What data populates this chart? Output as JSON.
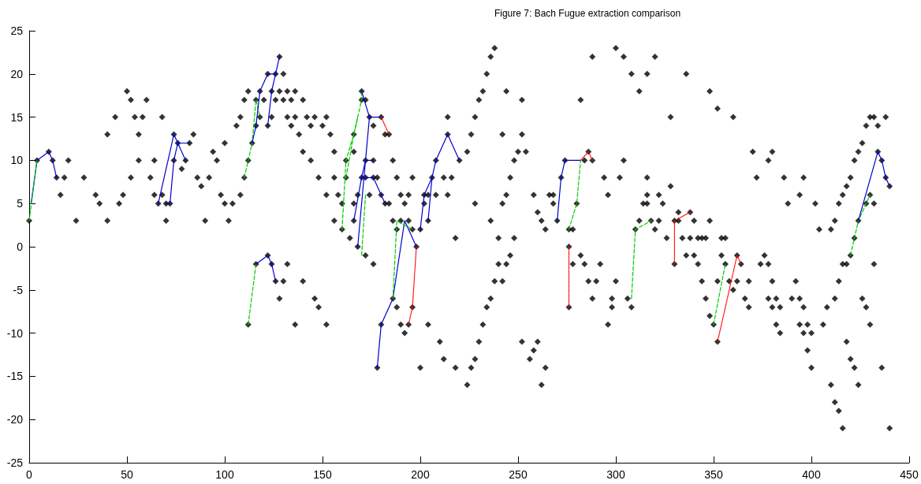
{
  "chart_data": {
    "type": "scatter",
    "title": "Figure 7: Bach Fugue extraction comparison",
    "xlim": [
      0,
      450
    ],
    "xticks": [
      0,
      50,
      100,
      150,
      200,
      250,
      300,
      350,
      400,
      450
    ],
    "ylim": [
      -25,
      25
    ],
    "yticks": [
      -25,
      -20,
      -15,
      -10,
      -5,
      0,
      5,
      10,
      15,
      20,
      25
    ],
    "grid": false,
    "series": [
      {
        "marker": "diamond",
        "color": "#000000",
        "x": [
          0,
          4,
          10,
          12,
          14,
          16,
          18,
          20,
          24,
          28,
          34,
          36,
          40,
          40,
          44,
          46,
          48,
          50,
          52,
          52,
          54,
          56,
          56,
          58,
          60,
          62,
          64,
          64,
          66,
          68,
          68,
          70,
          70,
          72,
          74,
          74,
          76,
          78,
          80,
          82,
          84,
          86,
          88,
          90,
          92,
          94,
          96,
          98,
          100,
          100,
          102,
          104,
          106,
          108,
          108,
          110,
          110,
          112,
          112,
          114,
          116,
          116,
          118,
          118,
          120,
          122,
          124,
          124,
          126,
          122,
          126,
          128,
          130,
          128,
          130,
          132,
          132,
          134,
          134,
          136,
          136,
          138,
          140,
          140,
          142,
          144,
          146,
          150,
          152,
          154,
          144,
          148,
          152,
          156,
          156,
          156,
          158,
          160,
          160,
          162,
          162,
          164,
          166,
          166,
          166,
          166,
          168,
          168,
          170,
          170,
          170,
          172,
          172,
          172,
          174,
          174,
          176,
          176,
          176,
          178,
          180,
          180,
          182,
          182,
          184,
          184,
          186,
          186,
          188,
          188,
          190,
          190,
          192,
          194,
          194,
          196,
          196,
          198,
          200,
          202,
          202,
          204,
          204,
          206,
          208,
          208,
          212,
          214,
          214,
          214,
          216,
          218,
          220,
          224,
          226,
          228,
          228,
          230,
          232,
          234,
          236,
          238,
          236,
          240,
          242,
          242,
          244,
          244,
          246,
          248,
          248,
          250,
          252,
          252,
          254,
          258,
          260,
          262,
          264,
          266,
          268,
          268,
          270,
          272,
          274,
          276,
          276,
          278,
          280,
          282,
          284,
          286,
          288,
          288,
          294,
          296,
          300,
          302,
          304,
          304,
          308,
          312,
          314,
          316,
          316,
          316,
          316,
          320,
          312,
          310,
          318,
          320,
          322,
          322,
          324,
          326,
          328,
          328,
          332,
          330,
          332,
          334,
          336,
          338,
          338,
          340,
          342,
          344,
          346,
          348,
          348,
          352,
          354,
          356,
          360,
          370,
          372,
          378,
          380,
          386,
          388,
          394,
          396,
          402,
          404,
          410,
          412,
          414,
          416,
          418,
          420,
          422,
          422,
          424,
          426,
          428,
          430,
          432,
          434,
          438,
          424,
          428,
          430,
          432,
          434,
          436,
          438,
          440
        ],
        "values": [
          3,
          10,
          11,
          10,
          8,
          6,
          8,
          10,
          3,
          8,
          6,
          5,
          3,
          13,
          15,
          5,
          6,
          18,
          17,
          8,
          15,
          13,
          10,
          15,
          17,
          8,
          10,
          6,
          5,
          15,
          6,
          5,
          3,
          5,
          13,
          10,
          12,
          9,
          10,
          12,
          13,
          8,
          7,
          3,
          8,
          11,
          10,
          6,
          12,
          5,
          3,
          5,
          14,
          15,
          6,
          8,
          17,
          18,
          10,
          12,
          14,
          17,
          15,
          18,
          17,
          14,
          18,
          15,
          17,
          20,
          20,
          22,
          20,
          18,
          17,
          18,
          15,
          17,
          14,
          18,
          15,
          13,
          17,
          11,
          15,
          14,
          15,
          14,
          15,
          13,
          10,
          8,
          6,
          11,
          8,
          3,
          6,
          5,
          2,
          10,
          8,
          1,
          11,
          13,
          3,
          5,
          6,
          0,
          8,
          17,
          18,
          17,
          10,
          8,
          15,
          6,
          14,
          10,
          8,
          8,
          15,
          6,
          5,
          13,
          13,
          5,
          10,
          3,
          8,
          2,
          6,
          3,
          5,
          6,
          3,
          8,
          2,
          0,
          2,
          6,
          5,
          6,
          3,
          8,
          6,
          10,
          8,
          13,
          6,
          15,
          8,
          1,
          10,
          11,
          13,
          15,
          5,
          17,
          18,
          20,
          22,
          23,
          3,
          1,
          13,
          5,
          18,
          6,
          8,
          10,
          1,
          11,
          17,
          13,
          11,
          6,
          4,
          3,
          2,
          6,
          5,
          6,
          3,
          8,
          10,
          2,
          0,
          2,
          5,
          17,
          10,
          11,
          22,
          10,
          8,
          6,
          23,
          8,
          22,
          10,
          20,
          18,
          5,
          6,
          20,
          8,
          5,
          22,
          3,
          2,
          3,
          2,
          6,
          3,
          5,
          1,
          15,
          7,
          4,
          3,
          3,
          1,
          20,
          1,
          4,
          3,
          1,
          1,
          1,
          18,
          3,
          16,
          1,
          1,
          15,
          11,
          8,
          10,
          11,
          8,
          5,
          6,
          8,
          5,
          2,
          2,
          3,
          5,
          6,
          7,
          8,
          10,
          1,
          11,
          12,
          14,
          15,
          15,
          14,
          15,
          3,
          5,
          6,
          5,
          11,
          10,
          8,
          7
        ]
      },
      {
        "marker": "diamond",
        "color": "#000000",
        "x": [
          112,
          116,
          122,
          124,
          126,
          128,
          130,
          132,
          136,
          140,
          146,
          148,
          152,
          172,
          176,
          178,
          180,
          186,
          188,
          190,
          192,
          194,
          196,
          200,
          204,
          210,
          212,
          218,
          224,
          226,
          228,
          230,
          232,
          234,
          236,
          238,
          240,
          242,
          244,
          246,
          252,
          256,
          258,
          260,
          262,
          264,
          276,
          278,
          282,
          284,
          286,
          288,
          290,
          292,
          296,
          298,
          298,
          300,
          306,
          308,
          330,
          336,
          340,
          342,
          344,
          346,
          348,
          350,
          352,
          352,
          354,
          356,
          358,
          360,
          362,
          362,
          364,
          366,
          368,
          368,
          374,
          376,
          378,
          378,
          380,
          380,
          382,
          382,
          384,
          384,
          390,
          392,
          394,
          394,
          396,
          396,
          398,
          398,
          400,
          400,
          406,
          408,
          410,
          412,
          412,
          414,
          414,
          416,
          416,
          418,
          418,
          420,
          420,
          422,
          424,
          426,
          428,
          430,
          432,
          436,
          440
        ],
        "values": [
          -9,
          -2,
          -1,
          -2,
          -4,
          -6,
          -4,
          -2,
          -9,
          -4,
          -6,
          -7,
          -9,
          -1,
          -2,
          -14,
          -9,
          -6,
          -7,
          -9,
          -10,
          -9,
          -7,
          -14,
          -9,
          -11,
          -13,
          -14,
          -16,
          -14,
          -13,
          -11,
          -9,
          -7,
          -6,
          -4,
          -2,
          -4,
          -2,
          -1,
          -11,
          -13,
          -12,
          -11,
          -16,
          -14,
          -7,
          -2,
          -1,
          -2,
          -4,
          -6,
          -4,
          -2,
          -9,
          -7,
          -6,
          -4,
          -6,
          -7,
          -2,
          -1,
          -1,
          -2,
          -4,
          -6,
          -8,
          -9,
          -11,
          -4,
          -1,
          -2,
          -4,
          -5,
          -4,
          -1,
          -2,
          -6,
          -4,
          -7,
          -2,
          -1,
          -2,
          -6,
          -4,
          -7,
          -6,
          -9,
          -7,
          -10,
          -6,
          -4,
          -6,
          -9,
          -7,
          -10,
          -9,
          -12,
          -10,
          -14,
          -9,
          -7,
          -16,
          -6,
          -18,
          -4,
          -19,
          -2,
          -21,
          -2,
          -11,
          -1,
          -13,
          -14,
          -16,
          -6,
          -7,
          -9,
          -2,
          -14,
          -21
        ]
      },
      {
        "type": "line",
        "marker": "none",
        "line_style": "solid",
        "color": "#0000cc",
        "x": [
          1,
          4,
          10,
          12,
          14
        ],
        "values": [
          5,
          10,
          11,
          10,
          8
        ]
      },
      {
        "type": "line",
        "marker": "none",
        "line_style": "dashed",
        "color": "#00cc00",
        "x": [
          0,
          4
        ],
        "values": [
          3,
          10
        ]
      },
      {
        "type": "line",
        "marker": "none",
        "line_style": "solid",
        "color": "#0000cc",
        "x": [
          66,
          74,
          76,
          80
        ],
        "values": [
          5,
          13,
          12,
          10
        ]
      },
      {
        "type": "line",
        "marker": "none",
        "line_style": "solid",
        "color": "#0000cc",
        "x": [
          70,
          72,
          74,
          76,
          82
        ],
        "values": [
          5,
          5,
          10,
          12,
          12
        ]
      },
      {
        "type": "line",
        "marker": "none",
        "line_style": "dashed",
        "color": "#00cc00",
        "x": [
          110,
          112,
          114,
          116,
          118
        ],
        "values": [
          8,
          10,
          12,
          17,
          15
        ]
      },
      {
        "type": "line",
        "marker": "none",
        "line_style": "solid",
        "color": "#0000cc",
        "x": [
          114,
          116,
          118,
          122,
          126
        ],
        "values": [
          12,
          14,
          18,
          20,
          20
        ]
      },
      {
        "type": "line",
        "marker": "none",
        "line_style": "solid",
        "color": "#0000cc",
        "x": [
          122,
          124,
          126,
          128
        ],
        "values": [
          14,
          18,
          20,
          22
        ]
      },
      {
        "type": "line",
        "marker": "none",
        "line_style": "dashed",
        "color": "#00cc00",
        "x": [
          112,
          116
        ],
        "values": [
          -9,
          -2
        ]
      },
      {
        "type": "line",
        "marker": "none",
        "line_style": "solid",
        "color": "#0000cc",
        "x": [
          116,
          122,
          124,
          126
        ],
        "values": [
          -2,
          -1,
          -2,
          -4
        ]
      },
      {
        "type": "line",
        "marker": "none",
        "line_style": "dashed",
        "color": "#00cc00",
        "x": [
          160,
          162,
          166,
          170,
          170
        ],
        "values": [
          2,
          10,
          13,
          17,
          18
        ]
      },
      {
        "type": "line",
        "marker": "none",
        "line_style": "dashed",
        "color": "#00cc00",
        "x": [
          162,
          166,
          168
        ],
        "values": [
          8,
          13,
          15
        ]
      },
      {
        "type": "line",
        "marker": "none",
        "line_style": "dashed",
        "color": "#00cc00",
        "x": [
          172,
          170
        ],
        "values": [
          6,
          -1
        ]
      },
      {
        "type": "line",
        "marker": "none",
        "line_style": "solid",
        "color": "#0000cc",
        "x": [
          170,
          174,
          180
        ],
        "values": [
          18,
          15,
          15
        ]
      },
      {
        "type": "line",
        "marker": "none",
        "line_style": "solid",
        "color": "#0000cc",
        "x": [
          166,
          170,
          172,
          176
        ],
        "values": [
          3,
          8,
          10,
          10
        ]
      },
      {
        "type": "line",
        "marker": "none",
        "line_style": "solid",
        "color": "#0000cc",
        "x": [
          168,
          174
        ],
        "values": [
          0,
          15
        ]
      },
      {
        "type": "line",
        "marker": "none",
        "line_style": "solid",
        "color": "#0000cc",
        "x": [
          170,
          172,
          176,
          182
        ],
        "values": [
          8,
          8,
          8,
          5
        ]
      },
      {
        "type": "line",
        "marker": "none",
        "line_style": "dotted",
        "color": "#ff0000",
        "x": [
          180,
          184
        ],
        "values": [
          15,
          13
        ]
      },
      {
        "type": "line",
        "marker": "none",
        "line_style": "solid",
        "color": "#0000cc",
        "x": [
          178,
          180,
          186,
          192,
          198
        ],
        "values": [
          -14,
          -9,
          -6,
          3,
          0
        ]
      },
      {
        "type": "line",
        "marker": "none",
        "line_style": "dashed",
        "color": "#00cc00",
        "x": [
          186,
          188,
          196
        ],
        "values": [
          -6,
          3,
          2
        ]
      },
      {
        "type": "line",
        "marker": "none",
        "line_style": "dotted",
        "color": "#ff0000",
        "x": [
          198,
          196,
          194
        ],
        "values": [
          0,
          -7,
          -9
        ]
      },
      {
        "type": "line",
        "marker": "none",
        "line_style": "solid",
        "color": "#0000cc",
        "x": [
          200,
          202,
          206,
          208,
          214,
          220
        ],
        "values": [
          2,
          6,
          8,
          10,
          13,
          10
        ]
      },
      {
        "type": "line",
        "marker": "none",
        "line_style": "solid",
        "color": "#0000cc",
        "x": [
          204,
          206
        ],
        "values": [
          3,
          8
        ]
      },
      {
        "type": "line",
        "marker": "none",
        "line_style": "solid",
        "color": "#0000cc",
        "x": [
          270,
          272,
          274,
          282
        ],
        "values": [
          3,
          8,
          10,
          10
        ]
      },
      {
        "type": "line",
        "marker": "none",
        "line_style": "dashed",
        "color": "#00cc00",
        "x": [
          276,
          280,
          282
        ],
        "values": [
          2,
          5,
          10
        ]
      },
      {
        "type": "line",
        "marker": "none",
        "line_style": "dotted",
        "color": "#ff0000",
        "x": [
          276,
          276
        ],
        "values": [
          0,
          -7
        ]
      },
      {
        "type": "line",
        "marker": "none",
        "line_style": "dotted",
        "color": "#ff0000",
        "x": [
          282,
          286,
          288
        ],
        "values": [
          10,
          11,
          10
        ]
      },
      {
        "type": "line",
        "marker": "none",
        "line_style": "dashed",
        "color": "#00cc00",
        "x": [
          308,
          310,
          318
        ],
        "values": [
          -6,
          2,
          3
        ]
      },
      {
        "type": "line",
        "marker": "none",
        "line_style": "dotted",
        "color": "#ff0000",
        "x": [
          330,
          330,
          338
        ],
        "values": [
          -2,
          3,
          4
        ]
      },
      {
        "type": "line",
        "marker": "none",
        "line_style": "dashed",
        "color": "#00cc00",
        "x": [
          350,
          356
        ],
        "values": [
          -9,
          -2
        ]
      },
      {
        "type": "line",
        "marker": "none",
        "line_style": "dotted",
        "color": "#ff0000",
        "x": [
          352,
          362,
          364
        ],
        "values": [
          -11,
          -1,
          -2
        ]
      },
      {
        "type": "line",
        "marker": "none",
        "line_style": "dashed",
        "color": "#00cc00",
        "x": [
          420,
          424,
          430
        ],
        "values": [
          -1,
          3,
          6
        ]
      },
      {
        "type": "line",
        "marker": "none",
        "line_style": "solid",
        "color": "#0000cc",
        "x": [
          424,
          434,
          436,
          438,
          440
        ],
        "values": [
          3,
          11,
          10,
          8,
          7
        ]
      }
    ]
  }
}
